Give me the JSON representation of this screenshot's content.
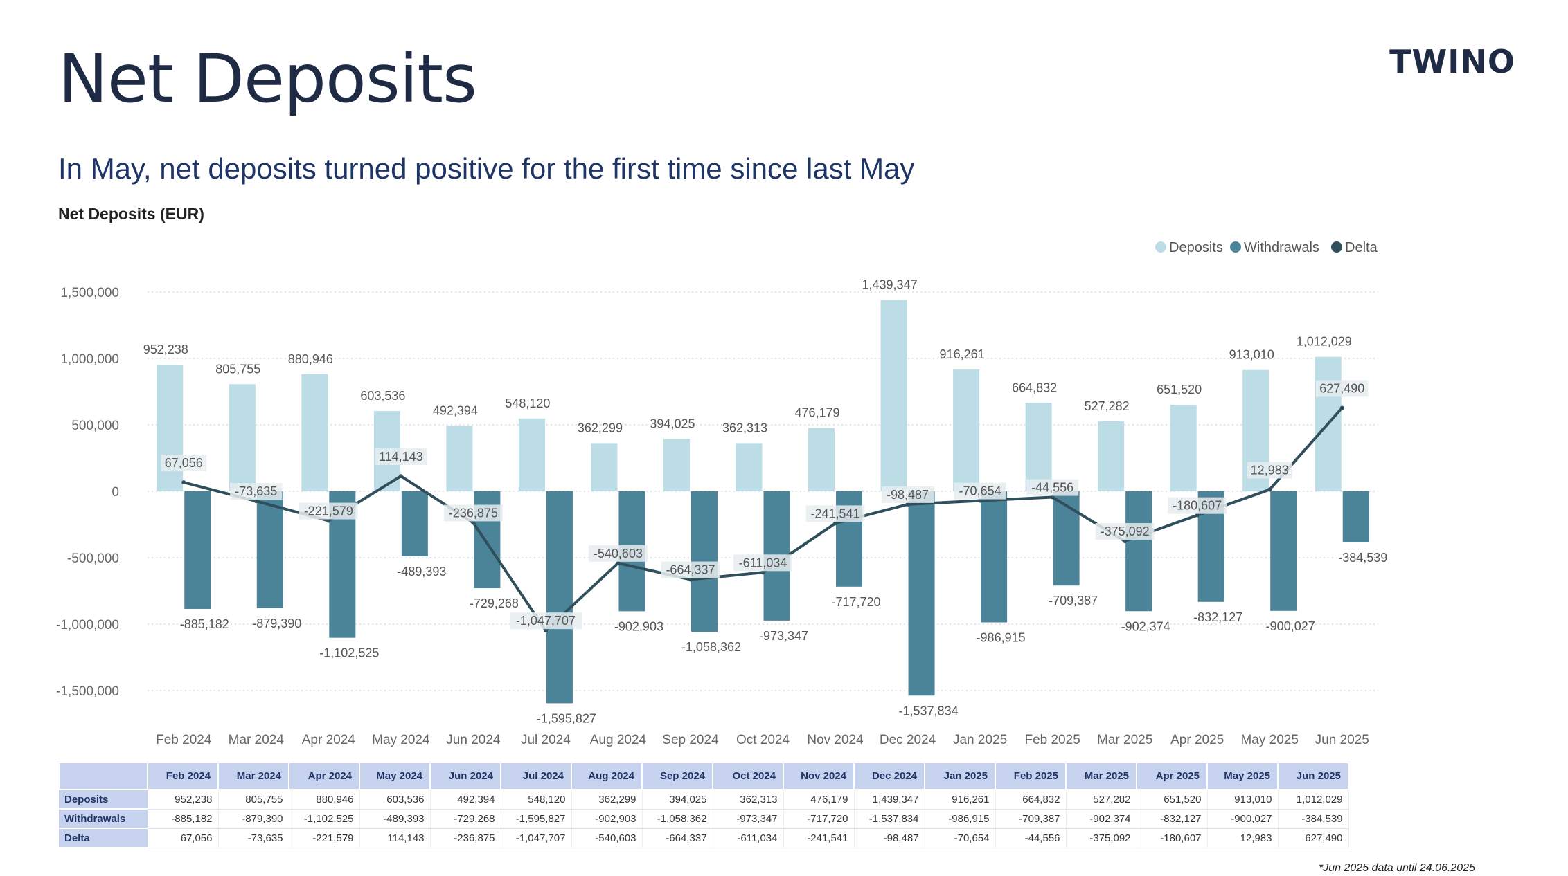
{
  "header": {
    "title": "Net Deposits",
    "logo": "TWINO",
    "subtitle": "In May, net deposits turned positive for the first time since last May",
    "chart_title": "Net Deposits (EUR)"
  },
  "legend": {
    "deposits": "Deposits",
    "withdrawals": "Withdrawals",
    "delta": "Delta"
  },
  "colors": {
    "deposits": "#bcdde6",
    "withdrawals": "#4b8399",
    "delta": "#2f4f5c",
    "table_header": "#c7d2ee"
  },
  "chart_data": {
    "type": "bar",
    "categories": [
      "Feb 2024",
      "Mar 2024",
      "Apr 2024",
      "May 2024",
      "Jun 2024",
      "Jul 2024",
      "Aug 2024",
      "Sep 2024",
      "Oct 2024",
      "Nov 2024",
      "Dec 2024",
      "Jan 2025",
      "Feb 2025",
      "Mar 2025",
      "Apr 2025",
      "May 2025",
      "Jun 2025"
    ],
    "series": [
      {
        "name": "Deposits",
        "values": [
          952238,
          805755,
          880946,
          603536,
          492394,
          548120,
          362299,
          394025,
          362313,
          476179,
          1439347,
          916261,
          664832,
          527282,
          651520,
          913010,
          1012029
        ]
      },
      {
        "name": "Withdrawals",
        "values": [
          -885182,
          -879390,
          -1102525,
          -489393,
          -729268,
          -1595827,
          -902903,
          -1058362,
          -973347,
          -717720,
          -1537834,
          -986915,
          -709387,
          -902374,
          -832127,
          -900027,
          -384539
        ]
      },
      {
        "name": "Delta",
        "values": [
          67056,
          -73635,
          -221579,
          114143,
          -236875,
          -1047707,
          -540603,
          -664337,
          -611034,
          -241541,
          -98487,
          -70654,
          -44556,
          -375092,
          -180607,
          12983,
          627490
        ]
      }
    ],
    "y_ticks": [
      "1,500,000",
      "1,000,000",
      "500,000",
      "0",
      "-500,000",
      "-1,000,000",
      "-1,500,000"
    ],
    "ylim": [
      -1700000,
      1600000
    ],
    "grid": true,
    "legend_position": "top-right"
  },
  "table": {
    "headers": [
      "Feb 2024",
      "Mar 2024",
      "Apr 2024",
      "May 2024",
      "Jun 2024",
      "Jul 2024",
      "Aug 2024",
      "Sep 2024",
      "Oct 2024",
      "Nov 2024",
      "Dec 2024",
      "Jan 2025",
      "Feb 2025",
      "Mar 2025",
      "Apr 2025",
      "May 2025",
      "Jun 2025"
    ],
    "rows": [
      {
        "label": "Deposits",
        "cells": [
          "952,238",
          "805,755",
          "880,946",
          "603,536",
          "492,394",
          "548,120",
          "362,299",
          "394,025",
          "362,313",
          "476,179",
          "1,439,347",
          "916,261",
          "664,832",
          "527,282",
          "651,520",
          "913,010",
          "1,012,029"
        ]
      },
      {
        "label": "Withdrawals",
        "cells": [
          "-885,182",
          "-879,390",
          "-1,102,525",
          "-489,393",
          "-729,268",
          "-1,595,827",
          "-902,903",
          "-1,058,362",
          "-973,347",
          "-717,720",
          "-1,537,834",
          "-986,915",
          "-709,387",
          "-902,374",
          "-832,127",
          "-900,027",
          "-384,539"
        ]
      },
      {
        "label": "Delta",
        "cells": [
          "67,056",
          "-73,635",
          "-221,579",
          "114,143",
          "-236,875",
          "-1,047,707",
          "-540,603",
          "-664,337",
          "-611,034",
          "-241,541",
          "-98,487",
          "-70,654",
          "-44,556",
          "-375,092",
          "-180,607",
          "12,983",
          "627,490"
        ]
      }
    ]
  },
  "footnote": "*Jun 2025 data until 24.06.2025"
}
